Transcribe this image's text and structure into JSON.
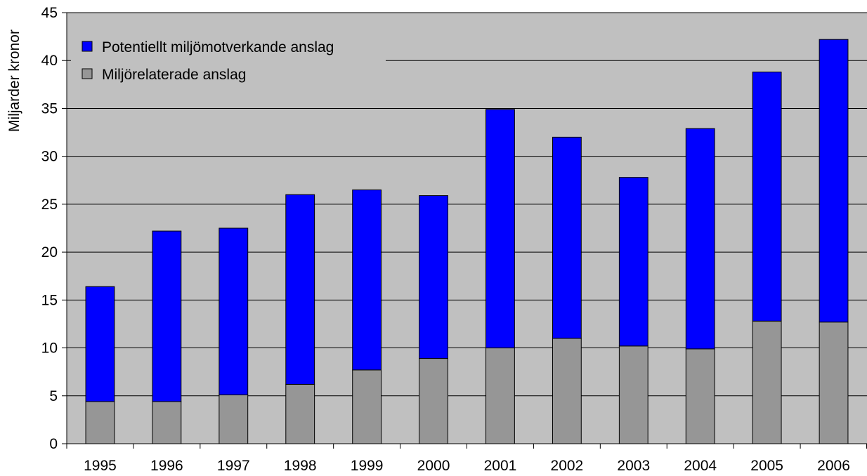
{
  "chart_data": {
    "type": "bar",
    "stacked": true,
    "ylabel": "Miljarder kronor",
    "xlabel": "",
    "ylim": [
      0,
      45
    ],
    "yticks": [
      0,
      5,
      10,
      15,
      20,
      25,
      30,
      35,
      40,
      45
    ],
    "grid": true,
    "legend_position": "top-left",
    "plot_background": "#c0c0c0",
    "categories": [
      "1995",
      "1996",
      "1997",
      "1998",
      "1999",
      "2000",
      "2001",
      "2002",
      "2003",
      "2004",
      "2005",
      "2006"
    ],
    "series": [
      {
        "name": "Miljörelaterade anslag",
        "color": "#969696",
        "values": [
          4.4,
          4.4,
          5.1,
          6.2,
          7.7,
          8.9,
          10.0,
          11.0,
          10.2,
          9.9,
          12.8,
          12.7
        ]
      },
      {
        "name": "Potentiellt miljömotverkande anslag",
        "color": "#0000ff",
        "values": [
          12.0,
          17.8,
          17.4,
          19.8,
          18.8,
          17.0,
          24.9,
          21.0,
          17.6,
          23.0,
          26.0,
          29.5
        ]
      }
    ],
    "legend_order": [
      "Potentiellt miljömotverkande anslag",
      "Miljörelaterade anslag"
    ]
  }
}
